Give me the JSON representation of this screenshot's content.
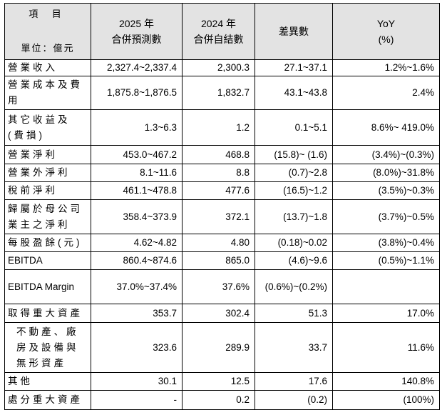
{
  "header": {
    "item": "項 目",
    "unit": "單位：億元",
    "columns": [
      [
        "2025 年",
        "合併預測數"
      ],
      [
        "2024 年",
        "合併自結數"
      ],
      [
        "差異數"
      ],
      [
        "YoY",
        "(%)"
      ]
    ]
  },
  "rows": [
    {
      "label": "營業收入",
      "values": [
        "2,327.4~2,337.4",
        "2,300.3",
        "27.1~37.1",
        "1.2%~1.6%"
      ]
    },
    {
      "label": "營業成本及費用",
      "values": [
        "1,875.8~1,876.5",
        "1,832.7",
        "43.1~43.8",
        "2.4%"
      ]
    },
    {
      "label": "其它收益及(費損)",
      "values": [
        "1.3~6.3",
        "1.2",
        "0.1~5.1",
        "8.6%~ 419.0%"
      ]
    },
    {
      "label": "營業淨利",
      "values": [
        "453.0~467.2",
        "468.8",
        "(15.8)~ (1.6)",
        "(3.4%)~(0.3%)"
      ]
    },
    {
      "label": "營業外淨利",
      "values": [
        "8.1~11.6",
        "8.8",
        "(0.7)~2.8",
        "(8.0%)~31.8%"
      ]
    },
    {
      "label": "稅前淨利",
      "values": [
        "461.1~478.8",
        "477.6",
        "(16.5)~1.2",
        "(3.5%)~0.3%"
      ]
    },
    {
      "label": "歸屬於母公司業主之淨利",
      "values": [
        "358.4~373.9",
        "372.1",
        "(13.7)~1.8",
        "(3.7%)~0.5%"
      ]
    },
    {
      "label": "每股盈餘(元)",
      "values": [
        "4.62~4.82",
        "4.80",
        "(0.18)~0.02",
        "(3.8%)~0.4%"
      ]
    },
    {
      "label": "EBITDA",
      "values": [
        "860.4~874.6",
        "865.0",
        "(4.6)~9.6",
        "(0.5%)~1.1%"
      ]
    },
    {
      "label": "EBITDA Margin",
      "values": [
        "37.0%~37.4%",
        "37.6%",
        "(0.6%)~(0.2%)"
      ]
    },
    {
      "label": "取得重大資產",
      "values": [
        "353.7",
        "302.4",
        "51.3",
        "17.0%"
      ]
    },
    {
      "label": "不動產、廠房及設備與無形資產",
      "values": [
        "323.6",
        "289.9",
        "33.7",
        "11.6%"
      ]
    },
    {
      "label": "其他",
      "values": [
        "30.1",
        "12.5",
        "17.6",
        "140.8%"
      ]
    },
    {
      "label": "處分重大資產",
      "values": [
        "-",
        "0.2",
        "(0.2)",
        "(100%)"
      ]
    }
  ]
}
